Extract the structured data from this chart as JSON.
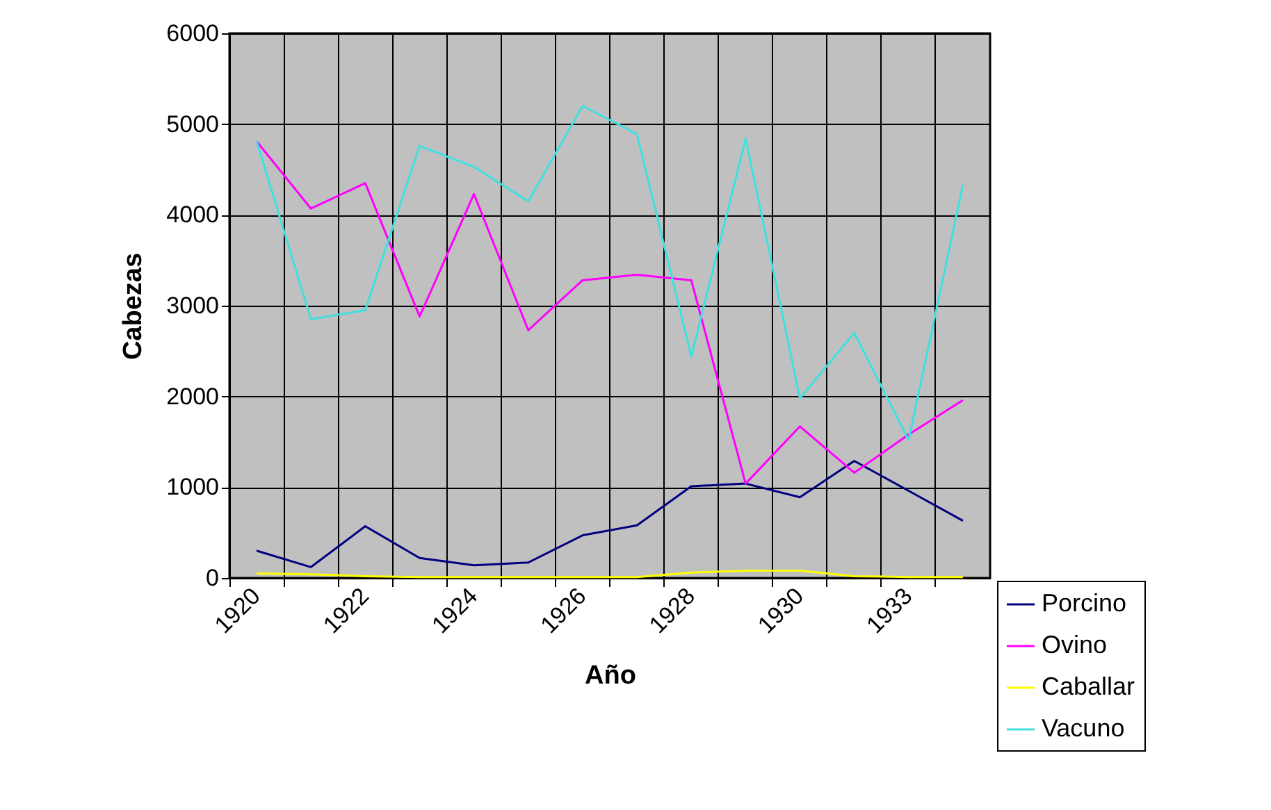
{
  "chart_data": {
    "type": "line",
    "xlabel": "Año",
    "ylabel": "Cabezas",
    "categories": [
      "1920",
      null,
      "1922",
      null,
      "1924",
      null,
      "1926",
      null,
      "1928",
      null,
      "1930",
      null,
      "1933",
      null
    ],
    "series": [
      {
        "name": "Porcino",
        "color": "#000080",
        "values": [
          300,
          120,
          570,
          220,
          140,
          170,
          470,
          580,
          1010,
          1040,
          890,
          1290,
          960,
          630
        ]
      },
      {
        "name": "Ovino",
        "color": "#ff00ff",
        "values": [
          4810,
          4070,
          4350,
          2880,
          4230,
          2730,
          3280,
          3340,
          3280,
          1040,
          1670,
          1160,
          1580,
          1960
        ]
      },
      {
        "name": "Caballar",
        "color": "#ffff00",
        "values": [
          50,
          40,
          20,
          10,
          10,
          10,
          10,
          10,
          60,
          80,
          80,
          20,
          10,
          10
        ]
      },
      {
        "name": "Vacuno",
        "color": "#40e0e0",
        "values": [
          4810,
          2850,
          2950,
          4760,
          4530,
          4150,
          5200,
          4890,
          2440,
          4840,
          1980,
          2700,
          1520,
          4330
        ]
      }
    ],
    "ylim": [
      0,
      6000
    ],
    "yticks": [
      0,
      1000,
      2000,
      3000,
      4000,
      5000,
      6000
    ],
    "grid": true,
    "legend": "bottom right"
  }
}
